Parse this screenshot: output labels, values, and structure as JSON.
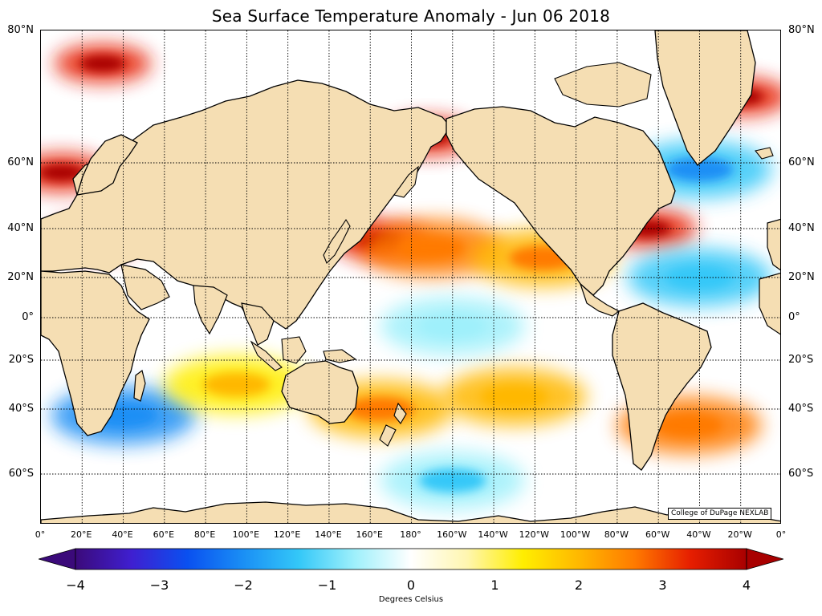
{
  "title": "Sea Surface Temperature Anomaly - Jun 06 2018",
  "credit": "College of DuPage NEXLAB",
  "lat_labels": [
    {
      "text": "80°N",
      "lat": 80
    },
    {
      "text": "60°N",
      "lat": 60
    },
    {
      "text": "40°N",
      "lat": 40
    },
    {
      "text": "20°N",
      "lat": 20
    },
    {
      "text": "0°",
      "lat": 0
    },
    {
      "text": "20°S",
      "lat": -20
    },
    {
      "text": "40°S",
      "lat": -40
    },
    {
      "text": "60°S",
      "lat": -60
    }
  ],
  "lon_labels": [
    "0°",
    "20°E",
    "40°E",
    "60°E",
    "80°E",
    "100°E",
    "120°E",
    "140°E",
    "160°E",
    "180°",
    "160°W",
    "140°W",
    "120°W",
    "100°W",
    "80°W",
    "60°W",
    "40°W",
    "20°W",
    "0°"
  ],
  "colorbar": {
    "label": "Degrees Celsius",
    "ticks": [
      "−4",
      "−3",
      "−2",
      "−1",
      "0",
      "1",
      "2",
      "3",
      "4"
    ],
    "min": -4,
    "max": 4,
    "colors": [
      "#3b0a7a",
      "#3f1fd0",
      "#0a50f0",
      "#1a8ff5",
      "#34c8f8",
      "#9ff0fb",
      "#ffffff",
      "#fff6b0",
      "#ffee00",
      "#ffb800",
      "#ff7a00",
      "#e61e00",
      "#a80000"
    ]
  },
  "colors": {
    "land": "#f5deb3",
    "coast": "#000000",
    "grid": "#000000"
  },
  "anomaly_regions": [
    {
      "name": "kuroshio-extension",
      "lon": 165,
      "lat": 35,
      "anomaly": 3.2
    },
    {
      "name": "north-pacific-band",
      "lon": 190,
      "lat": 32,
      "anomaly": 2.5
    },
    {
      "name": "sea-of-japan",
      "lon": 138,
      "lat": 42,
      "anomaly": 3.5
    },
    {
      "name": "okhotsk",
      "lon": 145,
      "lat": 58,
      "anomaly": 3.5
    },
    {
      "name": "bering",
      "lon": 188,
      "lat": 64,
      "anomaly": 3.2
    },
    {
      "name": "barents",
      "lon": 30,
      "lat": 75,
      "anomaly": 3.5
    },
    {
      "name": "north-sea-baltic",
      "lon": 10,
      "lat": 57,
      "anomaly": 3.5
    },
    {
      "name": "mediterranean",
      "lon": 25,
      "lat": 36,
      "anomaly": 3.2
    },
    {
      "name": "gulf-stream",
      "lon": 295,
      "lat": 40,
      "anomaly": 3.3
    },
    {
      "name": "labrador-greenland-east",
      "lon": 340,
      "lat": 70,
      "anomaly": 3.2
    },
    {
      "name": "irminger",
      "lon": 320,
      "lat": 58,
      "anomaly": -1.5
    },
    {
      "name": "north-atlantic-cold",
      "lon": 320,
      "lat": 20,
      "anomaly": -1.3
    },
    {
      "name": "southern-indian-cold",
      "lon": 40,
      "lat": -42,
      "anomaly": -1.8
    },
    {
      "name": "south-atlantic-warm",
      "lon": 315,
      "lat": -45,
      "anomaly": 2.6
    },
    {
      "name": "south-pacific-warm",
      "lon": 230,
      "lat": -35,
      "anomaly": 2.0
    },
    {
      "name": "tasman",
      "lon": 165,
      "lat": -40,
      "anomaly": 2.2
    },
    {
      "name": "california-coast",
      "lon": 244,
      "lat": 28,
      "anomaly": 2.3
    },
    {
      "name": "southern-ocean-cold",
      "lon": 200,
      "lat": -62,
      "anomaly": -0.9
    },
    {
      "name": "equatorial-pacific-cool",
      "lon": 200,
      "lat": -4,
      "anomaly": -0.7
    },
    {
      "name": "indian-ocean-warm",
      "lon": 95,
      "lat": -30,
      "anomaly": 1.6
    }
  ]
}
